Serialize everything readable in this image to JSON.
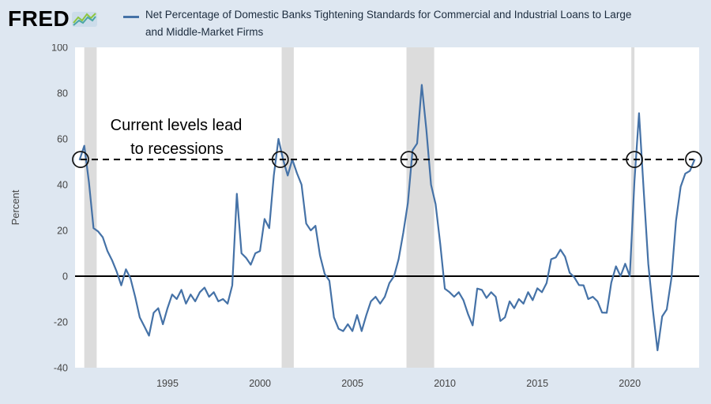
{
  "colors": {
    "background": "#dee7f1",
    "plot_background": "#ffffff",
    "line": "#4572a7",
    "recession_band": "#dcdcdc",
    "zero_line": "#000000",
    "threshold_line": "#000000",
    "circle_stroke": "#111111",
    "tick_text": "#444444",
    "title_text": "#1c2c3e",
    "annotation_text": "#000000"
  },
  "header": {
    "logo_text": "FRED",
    "legend_series_color": "#4572a7",
    "title_line1": "Net Percentage of Domestic Banks Tightening Standards for Commercial and Industrial Loans to Large",
    "title_line2": "and Middle-Market Firms"
  },
  "chart_data": {
    "type": "line",
    "title": "Net Percentage of Domestic Banks Tightening Standards for Commercial and Industrial Loans to Large and Middle-Market Firms",
    "ylabel": "Percent",
    "xlabel": "",
    "ylim": [
      -40,
      100
    ],
    "xlim": [
      1990,
      2023.75
    ],
    "yticks": [
      100,
      80,
      60,
      40,
      20,
      0,
      -20,
      -40
    ],
    "xticks": [
      1995,
      2000,
      2005,
      2010,
      2015,
      2020
    ],
    "grid": false,
    "legend_position": "top",
    "zero_line_value": 0,
    "annotation": {
      "line1": "Current levels lead",
      "line2": "to recessions"
    },
    "threshold": {
      "value": 51,
      "line_style": "dashed",
      "circle_marker_x": [
        1990.3,
        2001.1,
        2008.05,
        2020.25,
        2023.45
      ]
    },
    "recession_bands": [
      [
        1990.5,
        1991.17
      ],
      [
        2001.17,
        2001.83
      ],
      [
        2007.92,
        2009.42
      ],
      [
        2020.08,
        2020.25
      ]
    ],
    "series": [
      {
        "name": "Net Percentage of Domestic Banks Tightening Standards for Commercial and Industrial Loans to Large and Middle-Market Firms",
        "points": [
          [
            1990.25,
            51
          ],
          [
            1990.5,
            57
          ],
          [
            1990.75,
            41
          ],
          [
            1991.0,
            21
          ],
          [
            1991.25,
            19.5
          ],
          [
            1991.5,
            17
          ],
          [
            1991.75,
            11
          ],
          [
            1992.0,
            7
          ],
          [
            1992.25,
            2
          ],
          [
            1992.5,
            -4
          ],
          [
            1992.75,
            3
          ],
          [
            1993.0,
            -1
          ],
          [
            1993.25,
            -9
          ],
          [
            1993.5,
            -18
          ],
          [
            1993.75,
            -22
          ],
          [
            1994.0,
            -26
          ],
          [
            1994.25,
            -16
          ],
          [
            1994.5,
            -14
          ],
          [
            1994.75,
            -21
          ],
          [
            1995.0,
            -14
          ],
          [
            1995.25,
            -8
          ],
          [
            1995.5,
            -10
          ],
          [
            1995.75,
            -6
          ],
          [
            1996.0,
            -12
          ],
          [
            1996.25,
            -8
          ],
          [
            1996.5,
            -11
          ],
          [
            1996.75,
            -7
          ],
          [
            1997.0,
            -5
          ],
          [
            1997.25,
            -9
          ],
          [
            1997.5,
            -7
          ],
          [
            1997.75,
            -11
          ],
          [
            1998.0,
            -10
          ],
          [
            1998.25,
            -12
          ],
          [
            1998.5,
            -4
          ],
          [
            1998.75,
            36
          ],
          [
            1999.0,
            10
          ],
          [
            1999.25,
            8
          ],
          [
            1999.5,
            5
          ],
          [
            1999.75,
            10
          ],
          [
            2000.0,
            11
          ],
          [
            2000.25,
            25
          ],
          [
            2000.5,
            21
          ],
          [
            2000.75,
            44
          ],
          [
            2001.0,
            60
          ],
          [
            2001.25,
            51
          ],
          [
            2001.5,
            44
          ],
          [
            2001.75,
            51
          ],
          [
            2002.0,
            45
          ],
          [
            2002.25,
            40
          ],
          [
            2002.5,
            23
          ],
          [
            2002.75,
            20
          ],
          [
            2003.0,
            22
          ],
          [
            2003.25,
            9
          ],
          [
            2003.5,
            1
          ],
          [
            2003.75,
            -2
          ],
          [
            2004.0,
            -18
          ],
          [
            2004.25,
            -23
          ],
          [
            2004.5,
            -24
          ],
          [
            2004.75,
            -21
          ],
          [
            2005.0,
            -24
          ],
          [
            2005.25,
            -17
          ],
          [
            2005.5,
            -24
          ],
          [
            2005.75,
            -17
          ],
          [
            2006.0,
            -11
          ],
          [
            2006.25,
            -9
          ],
          [
            2006.5,
            -12
          ],
          [
            2006.75,
            -9
          ],
          [
            2007.0,
            -3
          ],
          [
            2007.25,
            0
          ],
          [
            2007.5,
            7.5
          ],
          [
            2007.75,
            19
          ],
          [
            2008.0,
            32
          ],
          [
            2008.25,
            55
          ],
          [
            2008.5,
            58
          ],
          [
            2008.75,
            83.6
          ],
          [
            2009.0,
            64
          ],
          [
            2009.25,
            40
          ],
          [
            2009.5,
            31.5
          ],
          [
            2009.75,
            14
          ],
          [
            2010.0,
            -5.5
          ],
          [
            2010.25,
            -7
          ],
          [
            2010.5,
            -9
          ],
          [
            2010.75,
            -7
          ],
          [
            2011.0,
            -10.5
          ],
          [
            2011.25,
            -16.5
          ],
          [
            2011.5,
            -21.5
          ],
          [
            2011.75,
            -5.4
          ],
          [
            2012.0,
            -6
          ],
          [
            2012.25,
            -9.5
          ],
          [
            2012.5,
            -7
          ],
          [
            2012.75,
            -9
          ],
          [
            2013.0,
            -19.6
          ],
          [
            2013.25,
            -18
          ],
          [
            2013.5,
            -11
          ],
          [
            2013.75,
            -14
          ],
          [
            2014.0,
            -10
          ],
          [
            2014.25,
            -12
          ],
          [
            2014.5,
            -7
          ],
          [
            2014.75,
            -10.5
          ],
          [
            2015.0,
            -5.3
          ],
          [
            2015.25,
            -7
          ],
          [
            2015.5,
            -3
          ],
          [
            2015.75,
            7.4
          ],
          [
            2016.0,
            8.2
          ],
          [
            2016.25,
            11.6
          ],
          [
            2016.5,
            8.5
          ],
          [
            2016.75,
            1.5
          ],
          [
            2017.0,
            -0.5
          ],
          [
            2017.25,
            -3.9
          ],
          [
            2017.5,
            -4
          ],
          [
            2017.75,
            -10
          ],
          [
            2018.0,
            -9
          ],
          [
            2018.25,
            -11
          ],
          [
            2018.5,
            -15.9
          ],
          [
            2018.75,
            -16
          ],
          [
            2019.0,
            -2.8
          ],
          [
            2019.25,
            4.3
          ],
          [
            2019.5,
            0
          ],
          [
            2019.75,
            5.4
          ],
          [
            2020.0,
            0
          ],
          [
            2020.25,
            41.5
          ],
          [
            2020.5,
            71.2
          ],
          [
            2020.75,
            37.5
          ],
          [
            2021.0,
            5.5
          ],
          [
            2021.25,
            -15
          ],
          [
            2021.5,
            -32.4
          ],
          [
            2021.75,
            -17.6
          ],
          [
            2022.0,
            -14.5
          ],
          [
            2022.25,
            -0.9
          ],
          [
            2022.5,
            24.2
          ],
          [
            2022.75,
            39.1
          ],
          [
            2023.0,
            44.8
          ],
          [
            2023.25,
            46
          ],
          [
            2023.5,
            50.8
          ]
        ]
      }
    ]
  }
}
